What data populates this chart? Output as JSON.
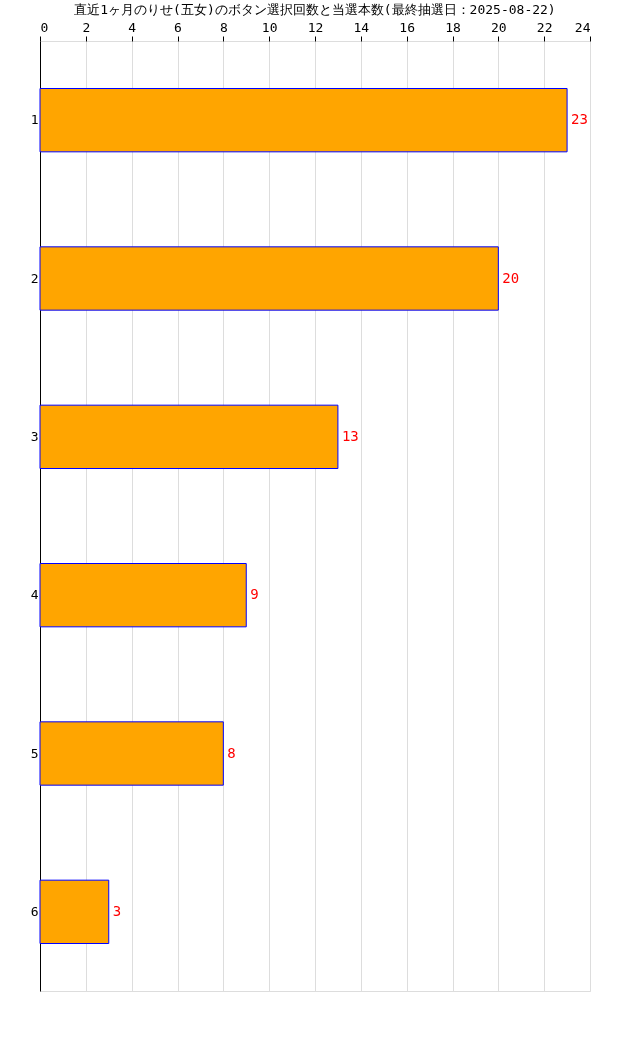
{
  "chart_data": {
    "type": "bar",
    "orientation": "horizontal",
    "title": "直近1ヶ月のりせ(五女)のボタン選択回数と当選本数(最終抽選日：2025-08-22)",
    "categories": [
      "1",
      "2",
      "3",
      "4",
      "5",
      "6"
    ],
    "values": [
      23,
      20,
      13,
      9,
      8,
      3
    ],
    "color": "#ffa500",
    "xlim": [
      0,
      24
    ],
    "xticks": [
      0,
      2,
      4,
      6,
      8,
      10,
      12,
      14,
      16,
      18,
      20,
      22,
      24
    ],
    "grid": "x",
    "data_labels": true
  }
}
